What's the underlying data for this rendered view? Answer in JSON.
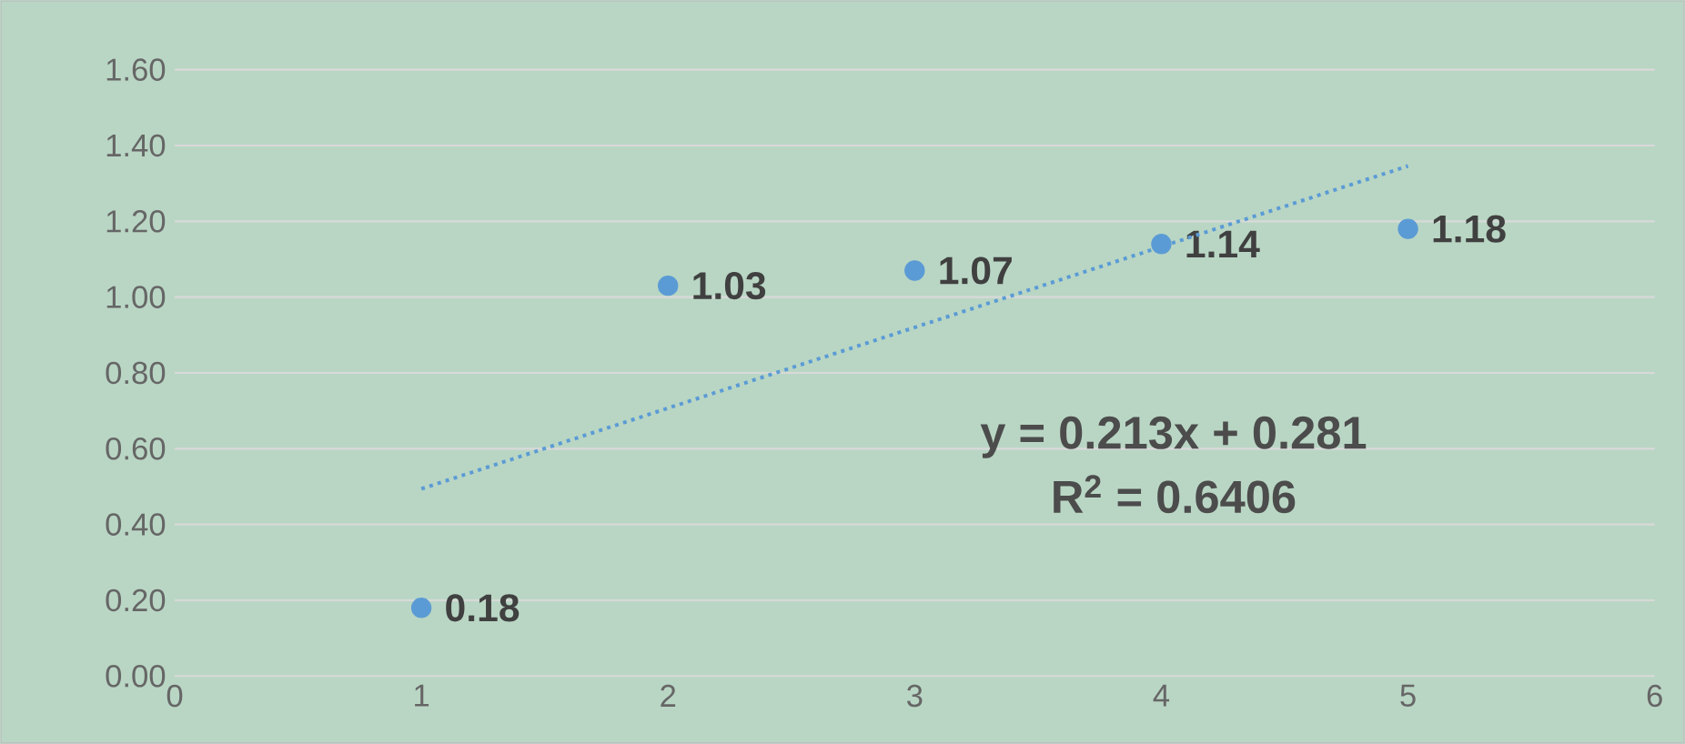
{
  "chart_data": {
    "type": "scatter",
    "series": [
      {
        "color": "#5b9bd5",
        "x": [
          1,
          2,
          3,
          4,
          5
        ],
        "values": [
          0.18,
          1.03,
          1.07,
          1.14,
          1.18
        ],
        "value_labels": [
          "0.18",
          "1.03",
          "1.07",
          "1.14",
          "1.18"
        ],
        "marker": "circle"
      },
      {
        "type": "line",
        "color": "#5b9bd5",
        "x": [
          1,
          5
        ],
        "values": [
          0.494,
          1.346
        ],
        "line_style": "dotted",
        "marker": "none"
      }
    ],
    "annotations": [
      "y = 0.213x + 0.281",
      "R$^{2}$ = 0.6406"
    ],
    "xlim": [
      0,
      6
    ],
    "xticks": [
      0,
      1,
      2,
      3,
      4,
      5,
      6
    ],
    "ylim": [
      0,
      1.6
    ],
    "yticks": [
      {
        "value": 0,
        "label": "0.00"
      },
      {
        "value": 0.2,
        "label": "0.20"
      },
      {
        "value": 0.4,
        "label": "0.40"
      },
      {
        "value": 0.6,
        "label": "0.60"
      },
      {
        "value": 0.8,
        "label": "0.80"
      },
      {
        "value": 1.0,
        "label": "1.00"
      },
      {
        "value": 1.2,
        "label": "1.20"
      },
      {
        "value": 1.4,
        "label": "1.40"
      },
      {
        "value": 1.6,
        "label": "1.60"
      }
    ],
    "grid": "y"
  }
}
